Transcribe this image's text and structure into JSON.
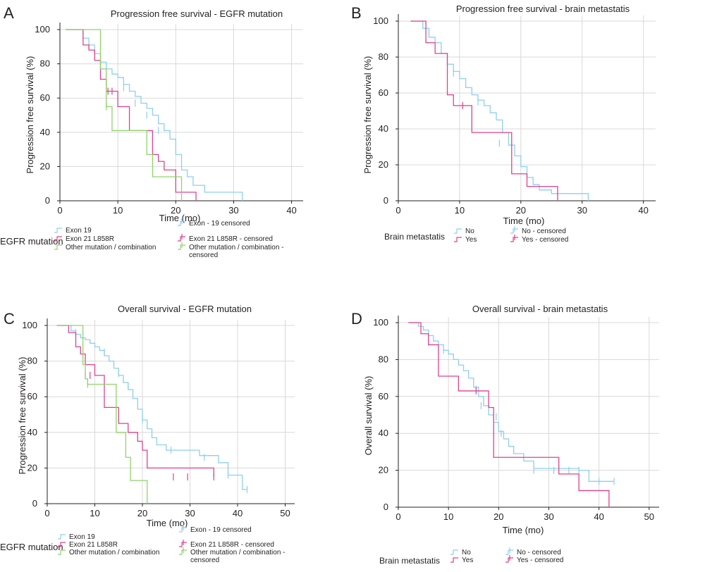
{
  "colors": {
    "exon19": "#8ecfef",
    "exon21": "#e2418a",
    "other": "#8fd46a",
    "no": "#8ecfef",
    "yes": "#e2418a",
    "axis": "#231f20",
    "grid": "#d9d9d9"
  },
  "chart_data": [
    {
      "panel": "A",
      "type": "line",
      "step": true,
      "title": "Progression free survival - EGFR mutation",
      "xlabel": "Time (mo)",
      "ylabel": "Progression free survival (%)",
      "xlim": [
        0,
        42
      ],
      "ylim": [
        0,
        100
      ],
      "xticks": [
        "0",
        "10",
        "20",
        "30",
        "40"
      ],
      "yticks": [
        "0",
        "20",
        "40",
        "60",
        "80",
        "100"
      ],
      "grid": true,
      "legend": {
        "title": "EGFR mutation",
        "entries": [
          "Exon 19",
          "Exon 21 L858R",
          "Other mutation / combination",
          "Exon - 19 censored",
          "Exon 21 L858R - censored",
          "Other mutation / combination - censored"
        ]
      },
      "series": [
        {
          "name": "Exon 19",
          "color_key": "exon19",
          "x": [
            1,
            4,
            5,
            6,
            7,
            8,
            9,
            10,
            11,
            12,
            13,
            14,
            15,
            16,
            17,
            18,
            19,
            20,
            21,
            22,
            23,
            25,
            31.5
          ],
          "y": [
            100,
            95,
            91,
            86,
            81,
            77,
            74,
            72,
            68,
            64,
            61,
            57,
            54,
            50,
            45,
            41,
            36,
            27,
            18,
            14,
            9,
            5,
            0
          ],
          "censored": [
            [
              5,
              91
            ],
            [
              11,
              66
            ],
            [
              13,
              57
            ],
            [
              15,
              50
            ],
            [
              17,
              41
            ]
          ]
        },
        {
          "name": "Exon 21 L858R",
          "color_key": "exon21",
          "x": [
            1,
            4,
            5,
            6,
            7,
            8,
            10,
            12,
            16,
            17,
            18,
            20,
            21,
            23.5
          ],
          "y": [
            100,
            91,
            88,
            82,
            71,
            64,
            55,
            41,
            27,
            23,
            18,
            5,
            5,
            0
          ],
          "censored": [
            [
              8.3,
              64
            ],
            [
              9,
              64
            ]
          ]
        },
        {
          "name": "Other mutation / combination",
          "color_key": "other",
          "x": [
            1,
            7,
            8,
            9,
            15,
            16,
            21
          ],
          "y": [
            100,
            77,
            55,
            41,
            27,
            14,
            0
          ],
          "censored": [
            [
              8,
              55
            ]
          ]
        }
      ]
    },
    {
      "panel": "B",
      "type": "line",
      "step": true,
      "title": "Progression free survival - brain metastatis",
      "xlabel": "Time (mo)",
      "ylabel": "Progression free survival (%)",
      "xlim": [
        0,
        42
      ],
      "ylim": [
        0,
        100
      ],
      "xticks": [
        "0",
        "10",
        "20",
        "30",
        "40"
      ],
      "yticks": [
        "0",
        "20",
        "40",
        "60",
        "80",
        "100"
      ],
      "grid": true,
      "legend": {
        "title": "Brain metastatis",
        "entries": [
          "No",
          "Yes",
          "No - censored",
          "Yes - censored"
        ]
      },
      "series": [
        {
          "name": "No",
          "color_key": "no",
          "x": [
            2,
            4,
            5,
            6,
            7,
            8,
            9,
            10,
            11,
            12,
            13,
            14,
            15,
            16,
            17,
            18,
            19,
            20,
            21,
            22,
            23,
            25,
            31
          ],
          "y": [
            100,
            96,
            91,
            88,
            82,
            76,
            72,
            68,
            63,
            59,
            56,
            53,
            49,
            45,
            38,
            31,
            25,
            19,
            13,
            9,
            6,
            4,
            0
          ],
          "censored": [
            [
              9,
              71
            ],
            [
              13,
              55
            ],
            [
              16.5,
              32
            ]
          ]
        },
        {
          "name": "Yes",
          "color_key": "yes",
          "x": [
            2,
            4.5,
            6,
            8,
            9,
            12,
            18.5,
            21,
            23,
            26
          ],
          "y": [
            100,
            88,
            82,
            59,
            53,
            38,
            15,
            8,
            8,
            0
          ],
          "censored": [
            [
              10.5,
              53
            ]
          ]
        }
      ]
    },
    {
      "panel": "C",
      "type": "line",
      "step": true,
      "title": "Overall survival - EGFR mutation",
      "xlabel": "Time (mo)",
      "ylabel": "Progression free survival (%)",
      "xlim": [
        0,
        52
      ],
      "ylim": [
        0,
        100
      ],
      "xticks": [
        "0",
        "10",
        "20",
        "30",
        "40",
        "50"
      ],
      "yticks": [
        "0",
        "20",
        "40",
        "60",
        "80",
        "100"
      ],
      "grid": true,
      "legend": {
        "title": "EGFR mutation",
        "entries": [
          "Exon 19",
          "Exon 21 L858R",
          "Other mutation / combination",
          "Exon - 19 censored",
          "Exon 21 L858R - censored",
          "Other mutation / combination - censored"
        ]
      },
      "series": [
        {
          "name": "Exon 19",
          "color_key": "exon19",
          "x": [
            2,
            5,
            6,
            7,
            8,
            9,
            10,
            11,
            12,
            13,
            14,
            15,
            16,
            17,
            18,
            19,
            20,
            21,
            22,
            23,
            25,
            32,
            36,
            38,
            41,
            42
          ],
          "y": [
            100,
            97,
            95,
            93,
            92,
            90,
            88,
            86,
            83,
            80,
            76,
            72,
            68,
            64,
            59,
            53,
            47,
            42,
            37,
            33,
            30,
            27,
            23,
            16,
            8,
            8
          ],
          "censored": [
            [
              6,
              96
            ],
            [
              12,
              85
            ],
            [
              15,
              73
            ],
            [
              17,
              66
            ],
            [
              20,
              47
            ],
            [
              26,
              30
            ],
            [
              33,
              26
            ],
            [
              38,
              16
            ],
            [
              42,
              8
            ]
          ]
        },
        {
          "name": "Exon 21 L858R",
          "color_key": "exon21",
          "x": [
            2,
            4.5,
            6,
            7,
            8,
            10,
            12,
            15,
            17,
            19,
            20,
            21,
            35
          ],
          "y": [
            100,
            96,
            88,
            84,
            78,
            72,
            54,
            45,
            40,
            35,
            30,
            20,
            15
          ],
          "censored": [
            [
              8,
              72
            ],
            [
              9,
              72
            ],
            [
              26.5,
              15
            ],
            [
              29.5,
              15
            ],
            [
              35,
              15
            ]
          ]
        },
        {
          "name": "Other mutation / combination",
          "color_key": "other",
          "x": [
            2,
            7.5,
            8,
            8.5,
            14.5,
            16.5,
            17.5,
            21
          ],
          "y": [
            100,
            78,
            70,
            67,
            40,
            26,
            13,
            0
          ],
          "censored": [
            [
              8.5,
              67
            ]
          ]
        }
      ]
    },
    {
      "panel": "D",
      "type": "line",
      "step": true,
      "title": "Overall survival - brain metastatis",
      "xlabel": "Time (mo)",
      "ylabel": "Overall survival (%)",
      "xlim": [
        0,
        52
      ],
      "ylim": [
        0,
        100
      ],
      "xticks": [
        "0",
        "10",
        "20",
        "30",
        "40",
        "50"
      ],
      "yticks": [
        "0",
        "20",
        "40",
        "60",
        "80",
        "100"
      ],
      "grid": true,
      "legend": {
        "title": "Brain metastatis",
        "entries": [
          "No",
          "Yes",
          "No - censored",
          "Yes - censored"
        ]
      },
      "series": [
        {
          "name": "No",
          "color_key": "no",
          "x": [
            2,
            4,
            5,
            6,
            7,
            8,
            9,
            10,
            11,
            12,
            13,
            14,
            15,
            16,
            17,
            18,
            19,
            20,
            21,
            22,
            23,
            25,
            27,
            36,
            38,
            43
          ],
          "y": [
            100,
            98,
            96,
            93,
            90,
            88,
            85,
            83,
            80,
            77,
            74,
            70,
            65,
            60,
            55,
            50,
            46,
            41,
            37,
            33,
            29,
            25,
            21,
            20,
            14,
            14
          ],
          "censored": [
            [
              9,
              85
            ],
            [
              15.5,
              64
            ],
            [
              16.5,
              55
            ],
            [
              19.5,
              49
            ],
            [
              20.5,
              40
            ],
            [
              27,
              20
            ],
            [
              31,
              20
            ],
            [
              34,
              20
            ],
            [
              36,
              20
            ],
            [
              40,
              14
            ],
            [
              43,
              14
            ]
          ]
        },
        {
          "name": "Yes",
          "color_key": "yes",
          "x": [
            2,
            4.5,
            6,
            8,
            12,
            18,
            19,
            32,
            36,
            42
          ],
          "y": [
            100,
            94,
            88,
            71,
            63,
            54,
            27,
            18,
            9,
            0
          ],
          "censored": [
            [
              15.5,
              63
            ]
          ]
        }
      ]
    }
  ]
}
